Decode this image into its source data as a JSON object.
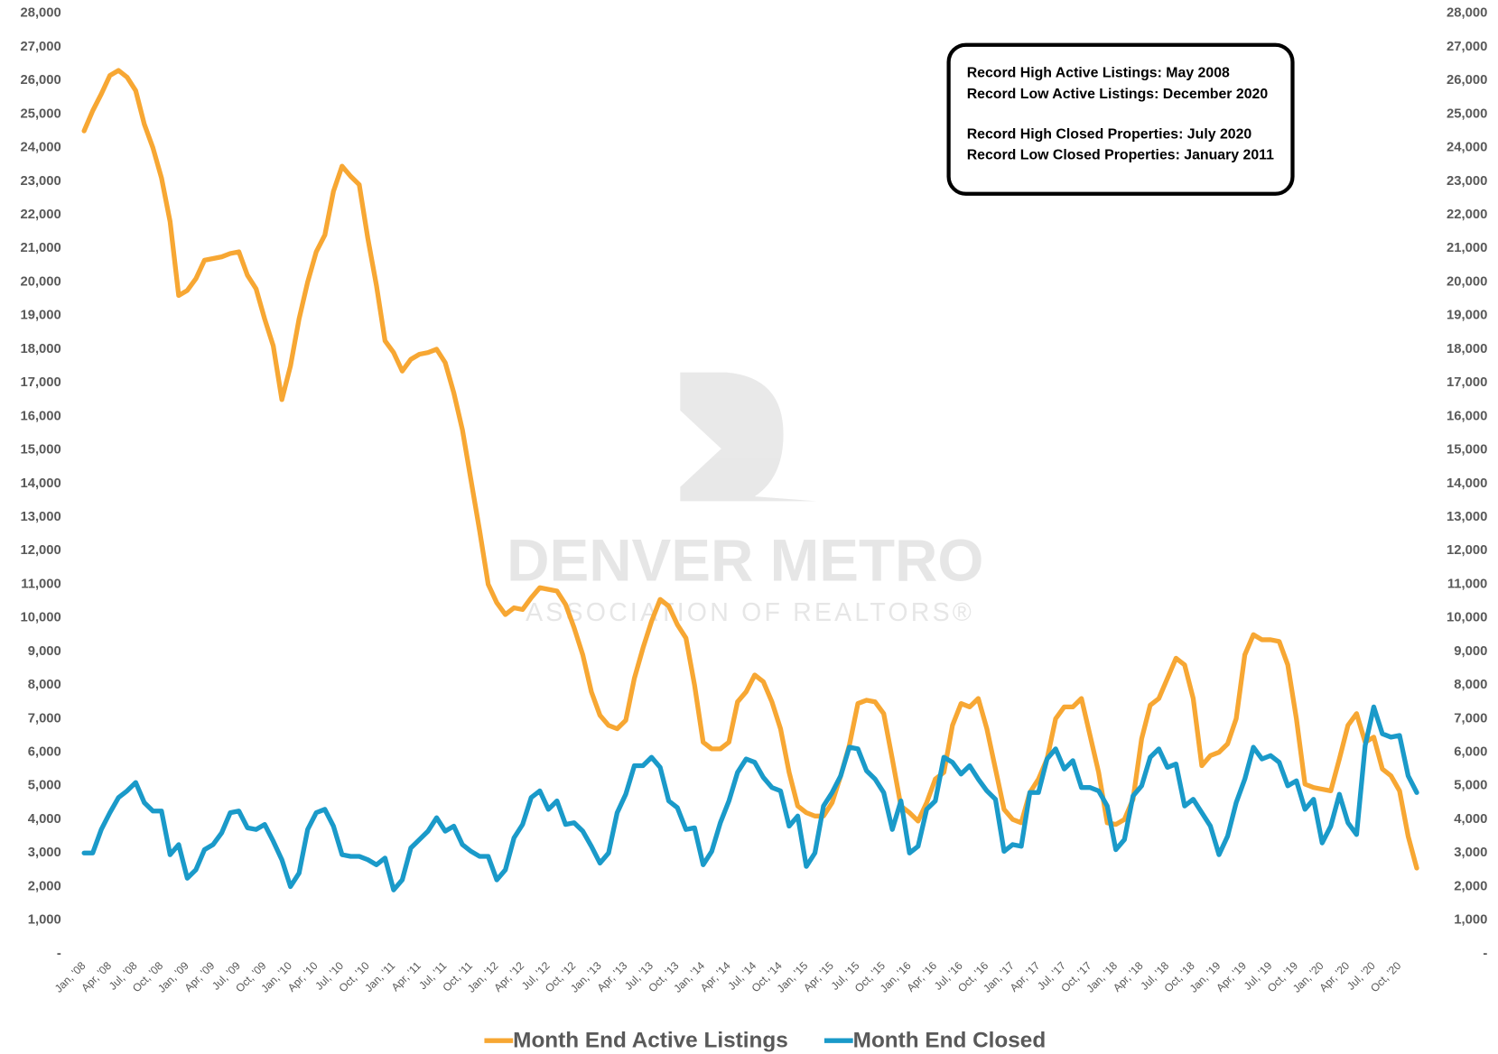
{
  "chart_data": {
    "type": "line",
    "categories": [
      "Jan, '08",
      null,
      null,
      "Apr, '08",
      null,
      null,
      "Jul, '08",
      null,
      null,
      "Oct, '08",
      null,
      null,
      "Jan, '09",
      null,
      null,
      "Apr, '09",
      null,
      null,
      "Jul, '09",
      null,
      null,
      "Oct, '09",
      null,
      null,
      "Jan, '10",
      null,
      null,
      "Apr, '10",
      null,
      null,
      "Jul, '10",
      null,
      null,
      "Oct, '10",
      null,
      null,
      "Jan, '11",
      null,
      null,
      "Apr, '11",
      null,
      null,
      "Jul, '11",
      null,
      null,
      "Oct, '11",
      null,
      null,
      "Jan, '12",
      null,
      null,
      "Apr, '12",
      null,
      null,
      "Jul, '12",
      null,
      null,
      "Oct, '12",
      null,
      null,
      "Jan, '13",
      null,
      null,
      "Apr, '13",
      null,
      null,
      "Jul, '13",
      null,
      null,
      "Oct, '13",
      null,
      null,
      "Jan, '14",
      null,
      null,
      "Apr, '14",
      null,
      null,
      "Jul, '14",
      null,
      null,
      "Oct, '14",
      null,
      null,
      "Jan, '15",
      null,
      null,
      "Apr, '15",
      null,
      null,
      "Jul, '15",
      null,
      null,
      "Oct, '15",
      null,
      null,
      "Jan, '16",
      null,
      null,
      "Apr, '16",
      null,
      null,
      "Jul, '16",
      null,
      null,
      "Oct, '16",
      null,
      null,
      "Jan, '17",
      null,
      null,
      "Apr, '17",
      null,
      null,
      "Jul, '17",
      null,
      null,
      "Oct, '17",
      null,
      null,
      "Jan, '18",
      null,
      null,
      "Apr, '18",
      null,
      null,
      "Jul, '18",
      null,
      null,
      "Oct, '18",
      null,
      null,
      "Jan, '19",
      null,
      null,
      "Apr, '19",
      null,
      null,
      "Jul, '19",
      null,
      null,
      "Oct, '19",
      null,
      null,
      "Jan, '20",
      null,
      null,
      "Apr, '20",
      null,
      null,
      "Jul, '20",
      null,
      null,
      "Oct, '20",
      null,
      null
    ],
    "series": [
      {
        "name": "Month End Active Listings",
        "color": "#f7a733",
        "values": [
          24500,
          25100,
          25600,
          26150,
          26300,
          26100,
          25700,
          24700,
          24000,
          23100,
          21800,
          19600,
          19750,
          20100,
          20650,
          20700,
          20750,
          20850,
          20900,
          20200,
          19800,
          18900,
          18100,
          16500,
          17500,
          18900,
          20000,
          20900,
          21400,
          22700,
          23450,
          23150,
          22900,
          21300,
          19900,
          18250,
          17900,
          17350,
          17700,
          17850,
          17900,
          18000,
          17600,
          16700,
          15600,
          14100,
          12600,
          11000,
          10450,
          10100,
          10300,
          10250,
          10600,
          10900,
          10850,
          10800,
          10400,
          9700,
          8900,
          7800,
          7100,
          6800,
          6700,
          6950,
          8200,
          9100,
          9900,
          10550,
          10350,
          9800,
          9400,
          8000,
          6300,
          6100,
          6100,
          6300,
          7500,
          7800,
          8300,
          8100,
          7500,
          6700,
          5400,
          4400,
          4200,
          4100,
          4100,
          4500,
          5300,
          6200,
          7450,
          7550,
          7500,
          7150,
          5800,
          4400,
          4200,
          3950,
          4500,
          5200,
          5400,
          6800,
          7450,
          7350,
          7600,
          6700,
          5500,
          4300,
          4000,
          3900,
          4800,
          5200,
          5800,
          7000,
          7350,
          7350,
          7600,
          6500,
          5400,
          3900,
          3850,
          4000,
          4600,
          6400,
          7400,
          7600,
          8200,
          8800,
          8600,
          7600,
          5600,
          5900,
          6000,
          6250,
          7000,
          8900,
          9500,
          9350,
          9350,
          9300,
          8600,
          7000,
          5050,
          4950,
          4900,
          4850,
          5800,
          6800,
          7150,
          6300,
          6450,
          5500,
          5300,
          4850,
          3500,
          2550
        ]
      },
      {
        "name": "Month End Closed",
        "color": "#1a9ac9",
        "values": [
          3000,
          3000,
          3700,
          4200,
          4650,
          4850,
          5100,
          4500,
          4250,
          4250,
          2950,
          3250,
          2250,
          2500,
          3100,
          3250,
          3600,
          4200,
          4250,
          3750,
          3700,
          3850,
          3350,
          2800,
          2000,
          2400,
          3700,
          4200,
          4300,
          3800,
          2950,
          2900,
          2900,
          2800,
          2650,
          2850,
          1900,
          2200,
          3150,
          3400,
          3650,
          4050,
          3650,
          3800,
          3250,
          3050,
          2900,
          2900,
          2200,
          2500,
          3450,
          3850,
          4650,
          4850,
          4300,
          4550,
          3850,
          3900,
          3650,
          3200,
          2700,
          3000,
          4200,
          4750,
          5600,
          5600,
          5850,
          5550,
          4550,
          4350,
          3700,
          3750,
          2650,
          3050,
          3900,
          4550,
          5400,
          5800,
          5700,
          5250,
          4950,
          4850,
          3800,
          4100,
          2600,
          3000,
          4400,
          4800,
          5300,
          6150,
          6100,
          5450,
          5200,
          4800,
          3700,
          4550,
          3000,
          3200,
          4300,
          4550,
          5850,
          5700,
          5350,
          5600,
          5200,
          4850,
          4600,
          3050,
          3250,
          3200,
          4800,
          4800,
          5800,
          6100,
          5500,
          5750,
          4950,
          4950,
          4850,
          4400,
          3100,
          3400,
          4700,
          5000,
          5850,
          6100,
          5550,
          5650,
          4400,
          4600,
          4200,
          3800,
          2950,
          3500,
          4500,
          5200,
          6150,
          5800,
          5900,
          5700,
          5000,
          5150,
          4300,
          4600,
          3300,
          3800,
          4750,
          3900,
          3550,
          6200,
          7350,
          6550,
          6450,
          6500,
          5300,
          4800
        ]
      }
    ],
    "ylim": [
      0,
      28000
    ],
    "yticks": [
      {
        "value": 0,
        "label": "-"
      },
      {
        "value": 1000,
        "label": "1,000"
      },
      {
        "value": 2000,
        "label": "2,000"
      },
      {
        "value": 3000,
        "label": "3,000"
      },
      {
        "value": 4000,
        "label": "4,000"
      },
      {
        "value": 5000,
        "label": "5,000"
      },
      {
        "value": 6000,
        "label": "6,000"
      },
      {
        "value": 7000,
        "label": "7,000"
      },
      {
        "value": 8000,
        "label": "8,000"
      },
      {
        "value": 9000,
        "label": "9,000"
      },
      {
        "value": 10000,
        "label": "10,000"
      },
      {
        "value": 11000,
        "label": "11,000"
      },
      {
        "value": 12000,
        "label": "12,000"
      },
      {
        "value": 13000,
        "label": "13,000"
      },
      {
        "value": 14000,
        "label": "14,000"
      },
      {
        "value": 15000,
        "label": "15,000"
      },
      {
        "value": 16000,
        "label": "16,000"
      },
      {
        "value": 17000,
        "label": "17,000"
      },
      {
        "value": 18000,
        "label": "18,000"
      },
      {
        "value": 19000,
        "label": "19,000"
      },
      {
        "value": 20000,
        "label": "20,000"
      },
      {
        "value": 21000,
        "label": "21,000"
      },
      {
        "value": 22000,
        "label": "22,000"
      },
      {
        "value": 23000,
        "label": "23,000"
      },
      {
        "value": 24000,
        "label": "24,000"
      },
      {
        "value": 25000,
        "label": "25,000"
      },
      {
        "value": 26000,
        "label": "26,000"
      },
      {
        "value": 27000,
        "label": "27,000"
      },
      {
        "value": 28000,
        "label": "28,000"
      }
    ],
    "y2lim": [
      0,
      28000
    ],
    "y2ticks": [
      {
        "value": 0,
        "label": "-"
      },
      {
        "value": 1000,
        "label": "1,000"
      },
      {
        "value": 2000,
        "label": "2,000"
      },
      {
        "value": 3000,
        "label": "3,000"
      },
      {
        "value": 4000,
        "label": "4,000"
      },
      {
        "value": 5000,
        "label": "5,000"
      },
      {
        "value": 6000,
        "label": "6,000"
      },
      {
        "value": 7000,
        "label": "7,000"
      },
      {
        "value": 8000,
        "label": "8,000"
      },
      {
        "value": 9000,
        "label": "9,000"
      },
      {
        "value": 10000,
        "label": "10,000"
      },
      {
        "value": 11000,
        "label": "11,000"
      },
      {
        "value": 12000,
        "label": "12,000"
      },
      {
        "value": 13000,
        "label": "13,000"
      },
      {
        "value": 14000,
        "label": "14,000"
      },
      {
        "value": 15000,
        "label": "15,000"
      },
      {
        "value": 16000,
        "label": "16,000"
      },
      {
        "value": 17000,
        "label": "17,000"
      },
      {
        "value": 18000,
        "label": "18,000"
      },
      {
        "value": 19000,
        "label": "19,000"
      },
      {
        "value": 20000,
        "label": "20,000"
      },
      {
        "value": 21000,
        "label": "21,000"
      },
      {
        "value": 22000,
        "label": "22,000"
      },
      {
        "value": 23000,
        "label": "23,000"
      },
      {
        "value": 24000,
        "label": "24,000"
      },
      {
        "value": 25000,
        "label": "25,000"
      },
      {
        "value": 26000,
        "label": "26,000"
      },
      {
        "value": 27000,
        "label": "27,000"
      },
      {
        "value": 28000,
        "label": "28,000"
      }
    ],
    "grid": false,
    "legend": "bottom",
    "annotations": [
      "Record High Active Listings: May 2008",
      "Record Low Active Listings: December 2020",
      "Record High Closed Properties: July 2020",
      "Record Low Closed Properties: January 2011"
    ],
    "watermark": [
      "DENVER METRO",
      "ASSOCIATION OF REALTORS®"
    ]
  }
}
